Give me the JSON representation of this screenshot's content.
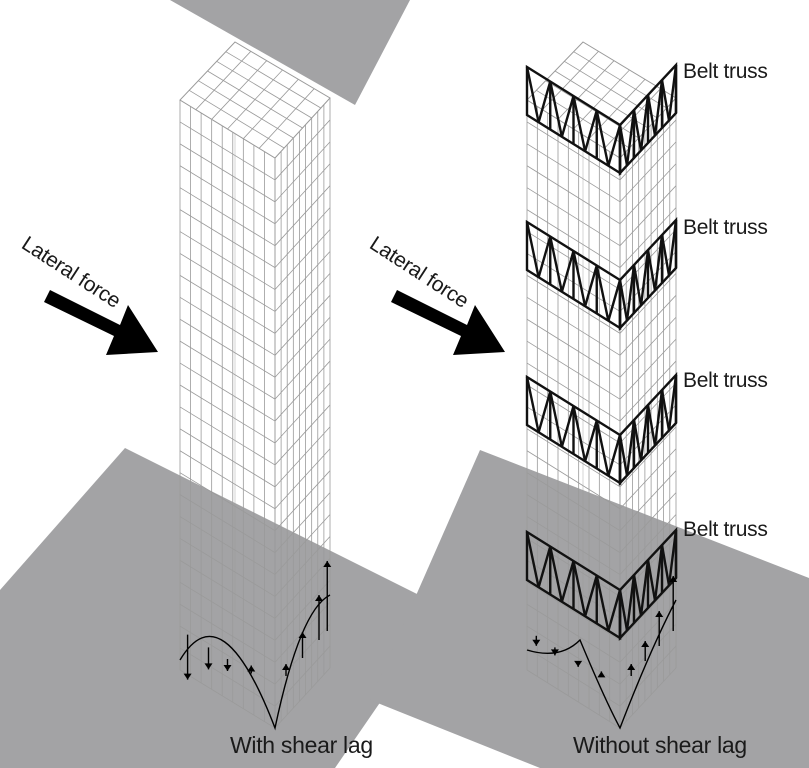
{
  "figure": {
    "left_tower": {
      "lateral_label": "Lateral force",
      "caption": "With shear lag"
    },
    "right_tower": {
      "lateral_label": "Lateral force",
      "caption": "Without shear lag",
      "belt_truss_labels": [
        "Belt truss",
        "Belt truss",
        "Belt truss",
        "Belt truss"
      ]
    },
    "colors": {
      "ground": "#a3a3a5",
      "frame": "#9a9a9a",
      "truss": "#111111",
      "arrow": "#000000"
    }
  }
}
